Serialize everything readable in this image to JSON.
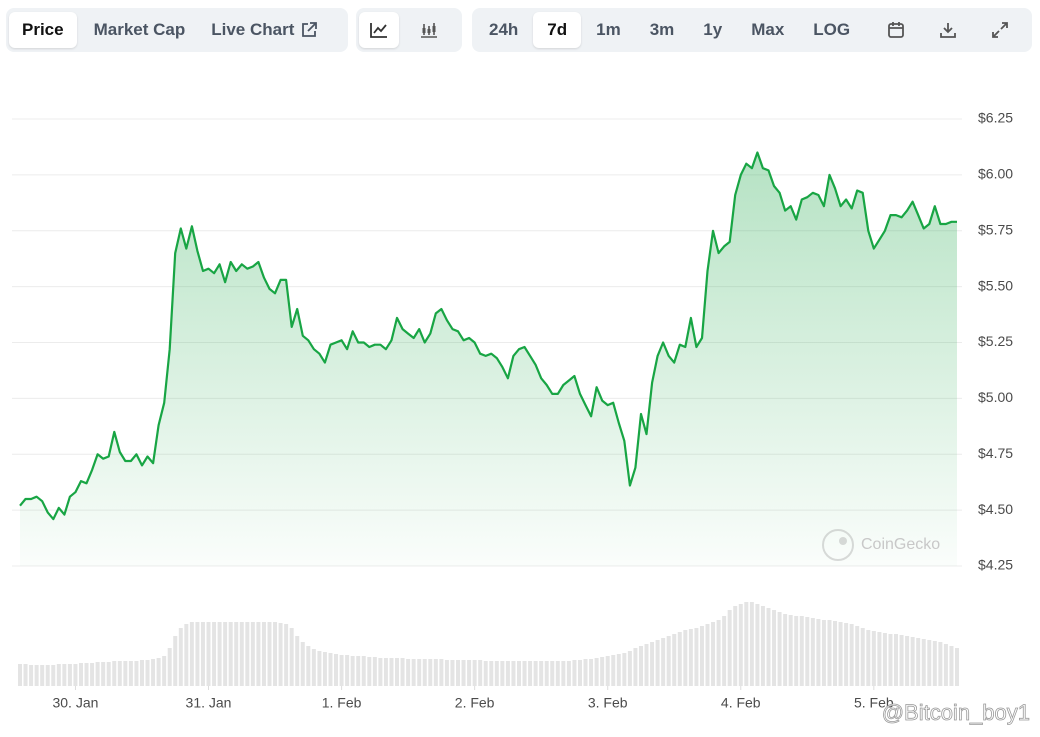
{
  "toolbar": {
    "views": [
      "Price",
      "Market Cap",
      "Live Chart"
    ],
    "selected_view": "Price",
    "ranges": [
      "24h",
      "7d",
      "1m",
      "3m",
      "1y",
      "Max",
      "LOG"
    ],
    "selected_range": "7d"
  },
  "watermarks": [
    "CoinGecko",
    "@Bitcoin_boy1"
  ],
  "chart_data": [
    {
      "type": "line",
      "color": "#18a544",
      "grid": true,
      "values": [
        4.52,
        4.55,
        4.55,
        4.56,
        4.54,
        4.49,
        4.46,
        4.51,
        4.48,
        4.56,
        4.58,
        4.63,
        4.62,
        4.68,
        4.75,
        4.73,
        4.74,
        4.85,
        4.76,
        4.72,
        4.72,
        4.75,
        4.7,
        4.74,
        4.71,
        4.88,
        4.98,
        5.22,
        5.65,
        5.76,
        5.67,
        5.77,
        5.66,
        5.57,
        5.58,
        5.56,
        5.6,
        5.52,
        5.61,
        5.57,
        5.6,
        5.58,
        5.59,
        5.61,
        5.54,
        5.49,
        5.47,
        5.53,
        5.53,
        5.32,
        5.4,
        5.28,
        5.26,
        5.22,
        5.2,
        5.16,
        5.24,
        5.25,
        5.26,
        5.22,
        5.3,
        5.25,
        5.25,
        5.23,
        5.24,
        5.24,
        5.22,
        5.26,
        5.36,
        5.31,
        5.29,
        5.27,
        5.31,
        5.25,
        5.29,
        5.38,
        5.4,
        5.35,
        5.31,
        5.3,
        5.26,
        5.27,
        5.25,
        5.2,
        5.19,
        5.2,
        5.18,
        5.14,
        5.09,
        5.19,
        5.22,
        5.23,
        5.19,
        5.15,
        5.09,
        5.06,
        5.02,
        5.02,
        5.06,
        5.08,
        5.1,
        5.02,
        4.97,
        4.92,
        5.05,
        4.99,
        4.97,
        4.98,
        4.89,
        4.81,
        4.61,
        4.69,
        4.93,
        4.84,
        5.07,
        5.19,
        5.25,
        5.19,
        5.16,
        5.24,
        5.23,
        5.36,
        5.23,
        5.27,
        5.57,
        5.75,
        5.65,
        5.68,
        5.7,
        5.91,
        6.0,
        6.05,
        6.03,
        6.1,
        6.03,
        6.02,
        5.95,
        5.92,
        5.84,
        5.86,
        5.8,
        5.89,
        5.9,
        5.92,
        5.91,
        5.86,
        6.0,
        5.94,
        5.86,
        5.89,
        5.85,
        5.93,
        5.92,
        5.75,
        5.67,
        5.71,
        5.75,
        5.82,
        5.82,
        5.81,
        5.84,
        5.88,
        5.82,
        5.76,
        5.78,
        5.86,
        5.78,
        5.78,
        5.79,
        5.79
      ],
      "xlim": [
        0,
        169
      ],
      "xticks": [
        {
          "value": 10,
          "label": "30. Jan"
        },
        {
          "value": 34,
          "label": "31. Jan"
        },
        {
          "value": 58,
          "label": "1. Feb"
        },
        {
          "value": 82,
          "label": "2. Feb"
        },
        {
          "value": 106,
          "label": "3. Feb"
        },
        {
          "value": 130,
          "label": "4. Feb"
        },
        {
          "value": 154,
          "label": "5. Feb"
        }
      ],
      "ylim": [
        4.25,
        6.25
      ],
      "yticks": [
        {
          "value": 4.25,
          "label": "$4.25"
        },
        {
          "value": 4.5,
          "label": "$4.50"
        },
        {
          "value": 4.75,
          "label": "$4.75"
        },
        {
          "value": 5,
          "label": "$5.00"
        },
        {
          "value": 5.25,
          "label": "$5.25"
        },
        {
          "value": 5.5,
          "label": "$5.50"
        },
        {
          "value": 5.75,
          "label": "$5.75"
        },
        {
          "value": 6,
          "label": "$6.00"
        },
        {
          "value": 6.25,
          "label": "$6.25"
        }
      ]
    },
    {
      "type": "bar",
      "color": "#e4e4e4",
      "xlim": [
        0,
        169
      ],
      "ylim": [
        0,
        100
      ],
      "values": [
        22,
        22,
        21,
        21,
        21,
        21,
        21,
        22,
        22,
        22,
        22,
        23,
        23,
        23,
        24,
        24,
        24,
        25,
        25,
        25,
        25,
        25,
        26,
        26,
        27,
        28,
        30,
        38,
        50,
        58,
        62,
        64,
        64,
        64,
        64,
        64,
        64,
        64,
        64,
        64,
        64,
        64,
        64,
        64,
        64,
        64,
        64,
        63,
        62,
        58,
        50,
        44,
        40,
        37,
        35,
        34,
        33,
        32,
        31,
        31,
        30,
        30,
        30,
        29,
        29,
        28,
        28,
        28,
        28,
        28,
        27,
        27,
        27,
        27,
        27,
        27,
        27,
        26,
        26,
        26,
        26,
        26,
        26,
        26,
        25,
        25,
        25,
        25,
        25,
        25,
        25,
        25,
        25,
        25,
        25,
        25,
        25,
        25,
        25,
        25,
        26,
        26,
        27,
        27,
        28,
        29,
        30,
        31,
        32,
        33,
        35,
        38,
        40,
        42,
        44,
        46,
        48,
        50,
        52,
        54,
        56,
        57,
        58,
        60,
        62,
        64,
        66,
        70,
        76,
        80,
        82,
        84,
        84,
        82,
        80,
        78,
        76,
        74,
        72,
        71,
        70,
        70,
        69,
        68,
        67,
        66,
        66,
        65,
        64,
        63,
        62,
        60,
        58,
        56,
        55,
        54,
        53,
        52,
        52,
        51,
        50,
        49,
        48,
        47,
        46,
        45,
        44,
        42,
        40,
        38
      ]
    }
  ]
}
